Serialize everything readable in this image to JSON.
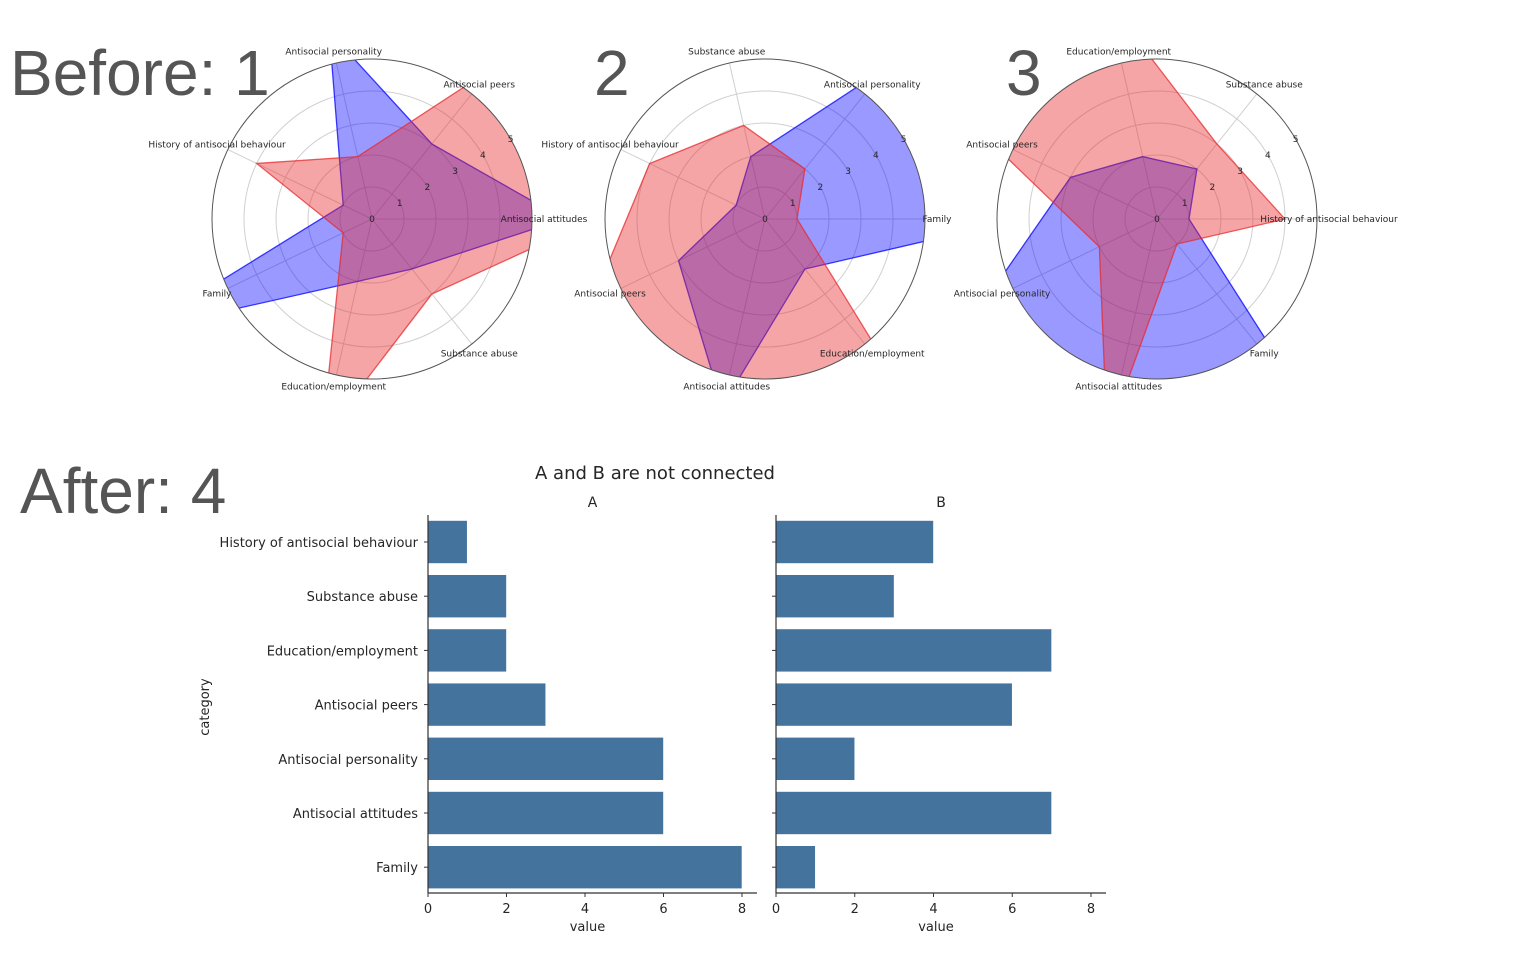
{
  "panel_labels": {
    "before_1": "Before: 1",
    "before_2": "2",
    "before_3": "3",
    "after_4": "After: 4"
  },
  "colors": {
    "series_1": "#0000ff",
    "series_2": "#e8282b",
    "bar": "#44739e",
    "text": "#555555"
  },
  "chart_data": [
    {
      "type": "radar",
      "axes": [
        "Antisocial attitudes",
        "Antisocial peers",
        "Antisocial personality",
        "History of antisocial behaviour",
        "Family",
        "Education/employment",
        "Substance abuse"
      ],
      "series": [
        {
          "color": "#0000ff",
          "values": [
            6,
            3,
            6,
            1,
            8,
            2,
            2
          ]
        },
        {
          "color": "#e8282b",
          "values": [
            7,
            6,
            2,
            4,
            1,
            7,
            3
          ]
        }
      ],
      "rlim": [
        0,
        5
      ],
      "rticks": [
        "0",
        "1",
        "2",
        "3",
        "4",
        "5"
      ],
      "grid": true
    },
    {
      "type": "radar",
      "axes": [
        "Family",
        "Antisocial personality",
        "Substance abuse",
        "History of antisocial behaviour",
        "Antisocial peers",
        "Antisocial attitudes",
        "Education/employment"
      ],
      "series": [
        {
          "color": "#0000ff",
          "values": [
            8,
            6,
            2,
            1,
            3,
            6,
            2
          ]
        },
        {
          "color": "#e8282b",
          "values": [
            1,
            2,
            3,
            4,
            6,
            7,
            7
          ]
        }
      ],
      "rlim": [
        0,
        5
      ],
      "rticks": [
        "0",
        "1",
        "2",
        "3",
        "4",
        "5"
      ],
      "grid": true
    },
    {
      "type": "radar",
      "axes": [
        "History of antisocial behaviour",
        "Substance abuse",
        "Education/employment",
        "Antisocial peers",
        "Antisocial personality",
        "Antisocial attitudes",
        "Family"
      ],
      "series": [
        {
          "color": "#0000ff",
          "values": [
            1,
            2,
            2,
            3,
            6,
            6,
            8
          ]
        },
        {
          "color": "#e8282b",
          "values": [
            4,
            3,
            7,
            6,
            2,
            7,
            1
          ]
        }
      ],
      "rlim": [
        0,
        5
      ],
      "rticks": [
        "0",
        "1",
        "2",
        "3",
        "4",
        "5"
      ],
      "grid": true
    },
    {
      "type": "bar",
      "orientation": "horizontal",
      "suptitle": "A and B are not connected",
      "title": "A",
      "categories": [
        "History of antisocial behaviour",
        "Substance abuse",
        "Education/employment",
        "Antisocial peers",
        "Antisocial personality",
        "Antisocial attitudes",
        "Family"
      ],
      "values": [
        1,
        2,
        2,
        3,
        6,
        6,
        8
      ],
      "xlabel": "value",
      "ylabel": "category",
      "xlim": [
        0,
        8.4
      ],
      "xticks": [
        "0",
        "2",
        "4",
        "6",
        "8"
      ]
    },
    {
      "type": "bar",
      "orientation": "horizontal",
      "title": "B",
      "categories": [
        "History of antisocial behaviour",
        "Substance abuse",
        "Education/employment",
        "Antisocial peers",
        "Antisocial personality",
        "Antisocial attitudes",
        "Family"
      ],
      "values": [
        4,
        3,
        7,
        6,
        2,
        7,
        1
      ],
      "xlabel": "value",
      "xlim": [
        0,
        8.4
      ],
      "xticks": [
        "0",
        "2",
        "4",
        "6",
        "8"
      ]
    }
  ]
}
